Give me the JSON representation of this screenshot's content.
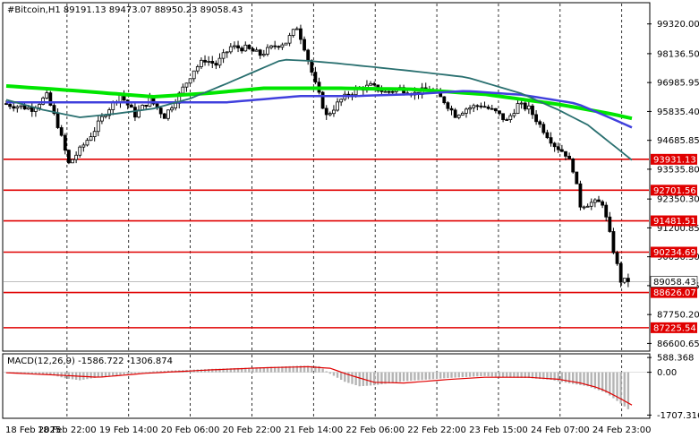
{
  "chart_data": [
    {
      "type": "candlestick",
      "header": "#Bitcoin,H1  89191.13 89473.07 88950.23 89058.43",
      "x_ticks": [
        "18 Feb 2025",
        "18 Feb 22:00",
        "19 Feb 14:00",
        "20 Feb 06:00",
        "20 Feb 22:00",
        "21 Feb 14:00",
        "22 Feb 06:00",
        "22 Feb 22:00",
        "23 Feb 15:00",
        "24 Feb 07:00",
        "24 Feb 23:00"
      ],
      "y_ticks": [
        99320.0,
        98136.5,
        96985.95,
        95835.4,
        94685.85,
        93535.8,
        92350.3,
        91200.85,
        90050.3,
        88900.75,
        87750.2,
        86600.65
      ],
      "ylim": [
        86330,
        100130
      ],
      "current_price": 89058.43,
      "levels": [
        93931.13,
        92701.56,
        91481.51,
        90234.69,
        88626.07,
        87225.54
      ],
      "level_color": "#e00000",
      "n_bars": 170,
      "close_path": [
        [
          0,
          96150
        ],
        [
          8,
          95950
        ],
        [
          12,
          96450
        ],
        [
          15,
          95300
        ],
        [
          18,
          93750
        ],
        [
          21,
          94300
        ],
        [
          25,
          95100
        ],
        [
          28,
          95800
        ],
        [
          32,
          96500
        ],
        [
          36,
          95700
        ],
        [
          40,
          96300
        ],
        [
          44,
          95650
        ],
        [
          48,
          96500
        ],
        [
          52,
          97500
        ],
        [
          55,
          97900
        ],
        [
          58,
          97700
        ],
        [
          62,
          98400
        ],
        [
          66,
          98350
        ],
        [
          70,
          98100
        ],
        [
          74,
          98450
        ],
        [
          77,
          98600
        ],
        [
          80,
          99200
        ],
        [
          82,
          98400
        ],
        [
          85,
          96900
        ],
        [
          88,
          95650
        ],
        [
          92,
          96300
        ],
        [
          96,
          96700
        ],
        [
          100,
          96850
        ],
        [
          104,
          96600
        ],
        [
          108,
          96750
        ],
        [
          112,
          96550
        ],
        [
          116,
          96750
        ],
        [
          120,
          96250
        ],
        [
          123,
          95700
        ],
        [
          126,
          95950
        ],
        [
          130,
          96100
        ],
        [
          134,
          95800
        ],
        [
          137,
          95450
        ],
        [
          140,
          96100
        ],
        [
          143,
          95950
        ],
        [
          146,
          95300
        ],
        [
          150,
          94500
        ],
        [
          153,
          94150
        ],
        [
          155,
          93550
        ],
        [
          157,
          92100
        ],
        [
          160,
          92200
        ],
        [
          163,
          92200
        ],
        [
          166,
          90300
        ],
        [
          168,
          89100
        ],
        [
          170,
          89058
        ]
      ],
      "ma_series": [
        {
          "color": "#00e600",
          "points": [
            [
              0,
              96850
            ],
            [
              20,
              96650
            ],
            [
              40,
              96420
            ],
            [
              55,
              96560
            ],
            [
              70,
              96760
            ],
            [
              90,
              96760
            ],
            [
              110,
              96720
            ],
            [
              130,
              96520
            ],
            [
              150,
              96120
            ],
            [
              165,
              95720
            ],
            [
              170,
              95560
            ]
          ]
        },
        {
          "color": "#4040dd",
          "points": [
            [
              0,
              96200
            ],
            [
              30,
              96200
            ],
            [
              60,
              96200
            ],
            [
              80,
              96450
            ],
            [
              95,
              96450
            ],
            [
              110,
              96520
            ],
            [
              125,
              96650
            ],
            [
              140,
              96500
            ],
            [
              155,
              96150
            ],
            [
              163,
              95650
            ],
            [
              170,
              95200
            ]
          ]
        },
        {
          "color": "#2a7070",
          "points": [
            [
              0,
              96300
            ],
            [
              10,
              95900
            ],
            [
              20,
              95600
            ],
            [
              30,
              95750
            ],
            [
              40,
              95950
            ],
            [
              50,
              96350
            ],
            [
              60,
              96950
            ],
            [
              75,
              97900
            ],
            [
              82,
              97850
            ],
            [
              90,
              97750
            ],
            [
              110,
              97450
            ],
            [
              125,
              97200
            ],
            [
              140,
              96550
            ],
            [
              150,
              95900
            ],
            [
              158,
              95300
            ],
            [
              164,
              94600
            ],
            [
              170,
              93900
            ]
          ]
        }
      ]
    },
    {
      "type": "macd",
      "header": "MACD(12,26,9) -1586.722 -1306.874",
      "y_ticks": [
        588.368,
        0.0,
        -1707.316
      ],
      "ylim": [
        -1800,
        700
      ],
      "histogram_color": "#b4b4b4",
      "signal_color": "#e00000",
      "hist_path": [
        [
          0,
          -30
        ],
        [
          12,
          -90
        ],
        [
          16,
          -240
        ],
        [
          20,
          -320
        ],
        [
          25,
          -200
        ],
        [
          30,
          -120
        ],
        [
          40,
          40
        ],
        [
          55,
          130
        ],
        [
          70,
          200
        ],
        [
          80,
          260
        ],
        [
          85,
          240
        ],
        [
          88,
          -60
        ],
        [
          92,
          -380
        ],
        [
          96,
          -560
        ],
        [
          100,
          -520
        ],
        [
          108,
          -360
        ],
        [
          120,
          -230
        ],
        [
          130,
          -150
        ],
        [
          136,
          -210
        ],
        [
          142,
          -230
        ],
        [
          148,
          -300
        ],
        [
          153,
          -440
        ],
        [
          158,
          -560
        ],
        [
          163,
          -820
        ],
        [
          167,
          -1250
        ],
        [
          170,
          -1586
        ]
      ],
      "signal_path": [
        [
          0,
          -20
        ],
        [
          15,
          -120
        ],
        [
          25,
          -200
        ],
        [
          38,
          -40
        ],
        [
          55,
          90
        ],
        [
          70,
          180
        ],
        [
          82,
          220
        ],
        [
          88,
          160
        ],
        [
          93,
          -100
        ],
        [
          100,
          -400
        ],
        [
          108,
          -430
        ],
        [
          120,
          -290
        ],
        [
          130,
          -200
        ],
        [
          142,
          -200
        ],
        [
          150,
          -280
        ],
        [
          156,
          -430
        ],
        [
          161,
          -620
        ],
        [
          165,
          -900
        ],
        [
          170,
          -1307
        ]
      ]
    }
  ]
}
